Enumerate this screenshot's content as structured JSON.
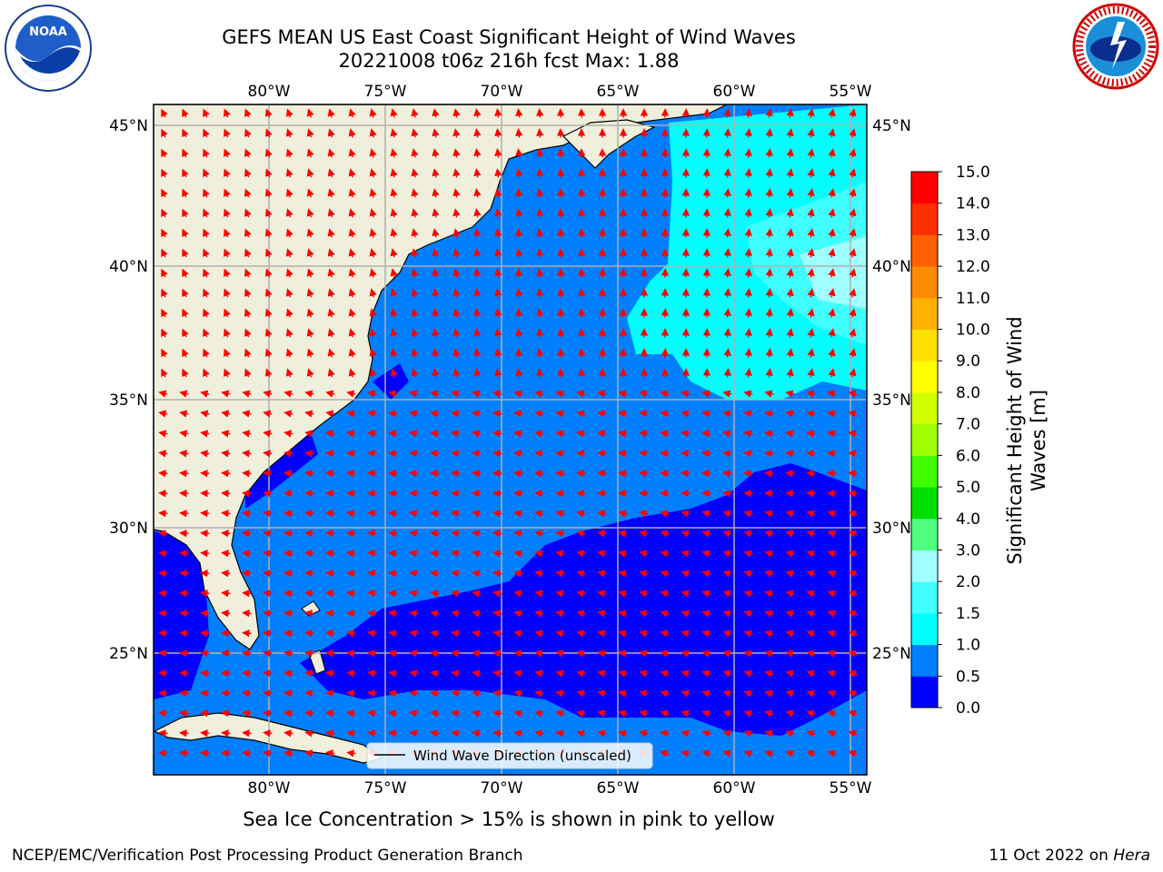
{
  "header": {
    "title_line1": "GEFS MEAN US East Coast Significant Height of Wind Waves",
    "title_line2": "20221008 t06z 216h fcst   Max: 1.88"
  },
  "logos": {
    "left": {
      "icon": "noaa-logo-icon",
      "text": "NOAA",
      "ring_text": "NATIONAL OCEANIC AND ATMOSPHERIC ADMINISTRATION · U.S. DEPARTMENT OF COMMERCE"
    },
    "right": {
      "icon": "nws-logo-icon",
      "ring_text": "NATIONAL WEATHER SERVICE"
    }
  },
  "map": {
    "lon_labels": [
      "80°W",
      "75°W",
      "70°W",
      "65°W",
      "60°W",
      "55°W"
    ],
    "lat_labels": [
      "45°N",
      "40°N",
      "35°N",
      "30°N",
      "25°N"
    ],
    "legend_label": "Wind Wave Direction (unscaled)",
    "colors": {
      "land": "#efefdc",
      "coast": "#000000",
      "grid": "#b0b0b0",
      "arrow": "#ff0000"
    }
  },
  "colorbar": {
    "title_line1": "Significant Height of Wind",
    "title_line2": "Waves [m]",
    "ticks": [
      "0.0",
      "0.5",
      "1.0",
      "1.5",
      "2.0",
      "3.0",
      "4.0",
      "5.0",
      "6.0",
      "7.0",
      "8.0",
      "9.0",
      "10.0",
      "11.0",
      "12.0",
      "13.0",
      "14.0",
      "15.0"
    ],
    "colors": [
      "#0000ff",
      "#0080ff",
      "#00ffff",
      "#40ffff",
      "#a0ffff",
      "#50ff80",
      "#00e000",
      "#40ff00",
      "#a0ff00",
      "#d0ff00",
      "#ffff00",
      "#ffe000",
      "#ffb000",
      "#ff8c00",
      "#ff6000",
      "#ff3000",
      "#ff0000"
    ]
  },
  "footer": {
    "sea_ice_note": "Sea Ice Concentration > 15% is shown in pink to yellow",
    "branch": "NCEP/EMC/Verification Post Processing Product Generation Branch",
    "date": "11 Oct 2022 on",
    "host": "Hera"
  }
}
